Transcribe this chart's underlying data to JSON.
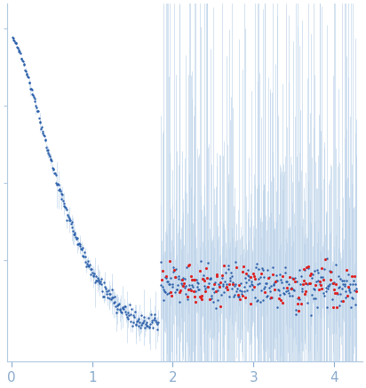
{
  "title": "",
  "xlim": [
    -0.05,
    4.35
  ],
  "ylim": [
    -0.08,
    1.08
  ],
  "xticks": [
    0,
    1,
    2,
    3,
    4
  ],
  "background_color": "#ffffff",
  "point_color_main": "#2b5faa",
  "point_color_outlier": "#dd2222",
  "error_color": "#b8d0e8",
  "point_size_main": 3,
  "point_size_outlier": 5,
  "seed": 1234
}
